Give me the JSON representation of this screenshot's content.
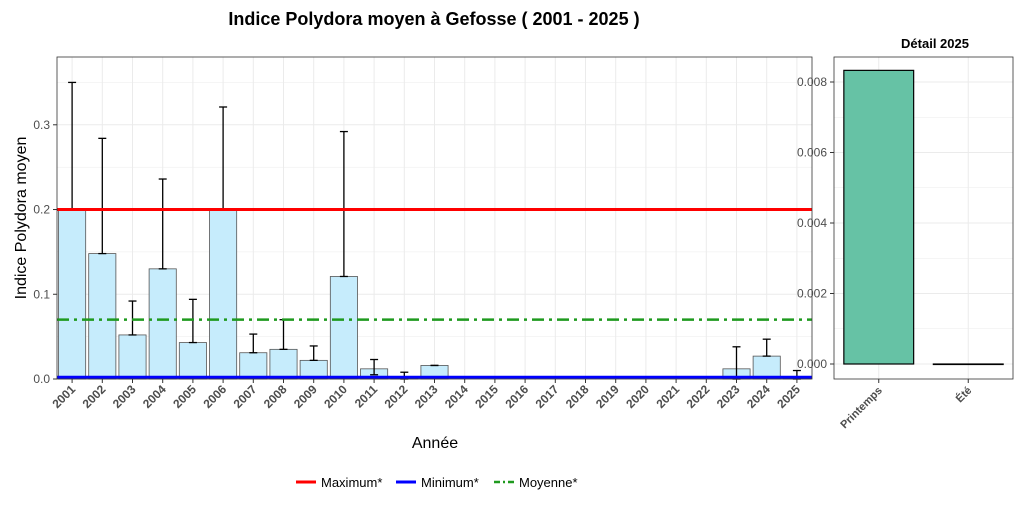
{
  "chart_data": [
    {
      "type": "bar",
      "title": "Indice Polydora moyen à Gefosse ( 2001 - 2025 )",
      "xlabel": "Année",
      "ylabel": "Indice Polydora moyen",
      "ylim": [
        0,
        0.38
      ],
      "yticks": [
        "0.0",
        "0.1",
        "0.2",
        "0.3"
      ],
      "ytick_values": [
        0,
        0.1,
        0.2,
        0.3
      ],
      "grid": true,
      "bar_color": "#c6ecfc",
      "categories": [
        "2001",
        "2002",
        "2003",
        "2004",
        "2005",
        "2006",
        "2007",
        "2008",
        "2009",
        "2010",
        "2011",
        "2012",
        "2013",
        "2014",
        "2015",
        "2016",
        "2017",
        "2018",
        "2019",
        "2020",
        "2021",
        "2022",
        "2023",
        "2024",
        "2025"
      ],
      "values": [
        0.2,
        0.148,
        0.052,
        0.13,
        0.043,
        0.2,
        0.031,
        0.035,
        0.022,
        0.121,
        0.012,
        0.001,
        0.016,
        0,
        0,
        0,
        0,
        0,
        0,
        0,
        0,
        0,
        0.012,
        0.027,
        0.003
      ],
      "error_bars": [
        [
          0.2,
          0.35
        ],
        [
          0.148,
          0.284
        ],
        [
          0.052,
          0.092
        ],
        [
          0.13,
          0.236
        ],
        [
          0.043,
          0.094
        ],
        [
          0.2,
          0.321
        ],
        [
          0.031,
          0.053
        ],
        [
          0.035,
          0.07
        ],
        [
          0.022,
          0.039
        ],
        [
          0.121,
          0.292
        ],
        [
          0.005,
          0.023
        ],
        [
          0.0,
          0.008
        ],
        [
          0.016,
          0.016
        ],
        null,
        null,
        null,
        null,
        null,
        null,
        null,
        null,
        null,
        [
          0.0,
          0.038
        ],
        [
          0.027,
          0.047
        ],
        [
          0.0,
          0.01
        ]
      ],
      "reference_lines": [
        {
          "name": "Maximum*",
          "value": 0.2,
          "color": "#ff0000",
          "style": "solid"
        },
        {
          "name": "Minimum*",
          "value": 0.002,
          "color": "#0000ff",
          "style": "solid"
        },
        {
          "name": "Moyenne*",
          "value": 0.07,
          "color": "#1f9a1f",
          "style": "dash-dot"
        }
      ],
      "legend_position": "bottom"
    },
    {
      "type": "bar",
      "title": "Détail 2025",
      "ylim": [
        0,
        0.0088
      ],
      "yticks": [
        "0.000",
        "0.002",
        "0.004",
        "0.006",
        "0.008"
      ],
      "ytick_values": [
        0,
        0.002,
        0.004,
        0.006,
        0.008
      ],
      "grid": true,
      "bar_color": "#66c2a5",
      "categories": [
        "Printemps",
        "Été"
      ],
      "values": [
        0.00833,
        0
      ]
    }
  ]
}
